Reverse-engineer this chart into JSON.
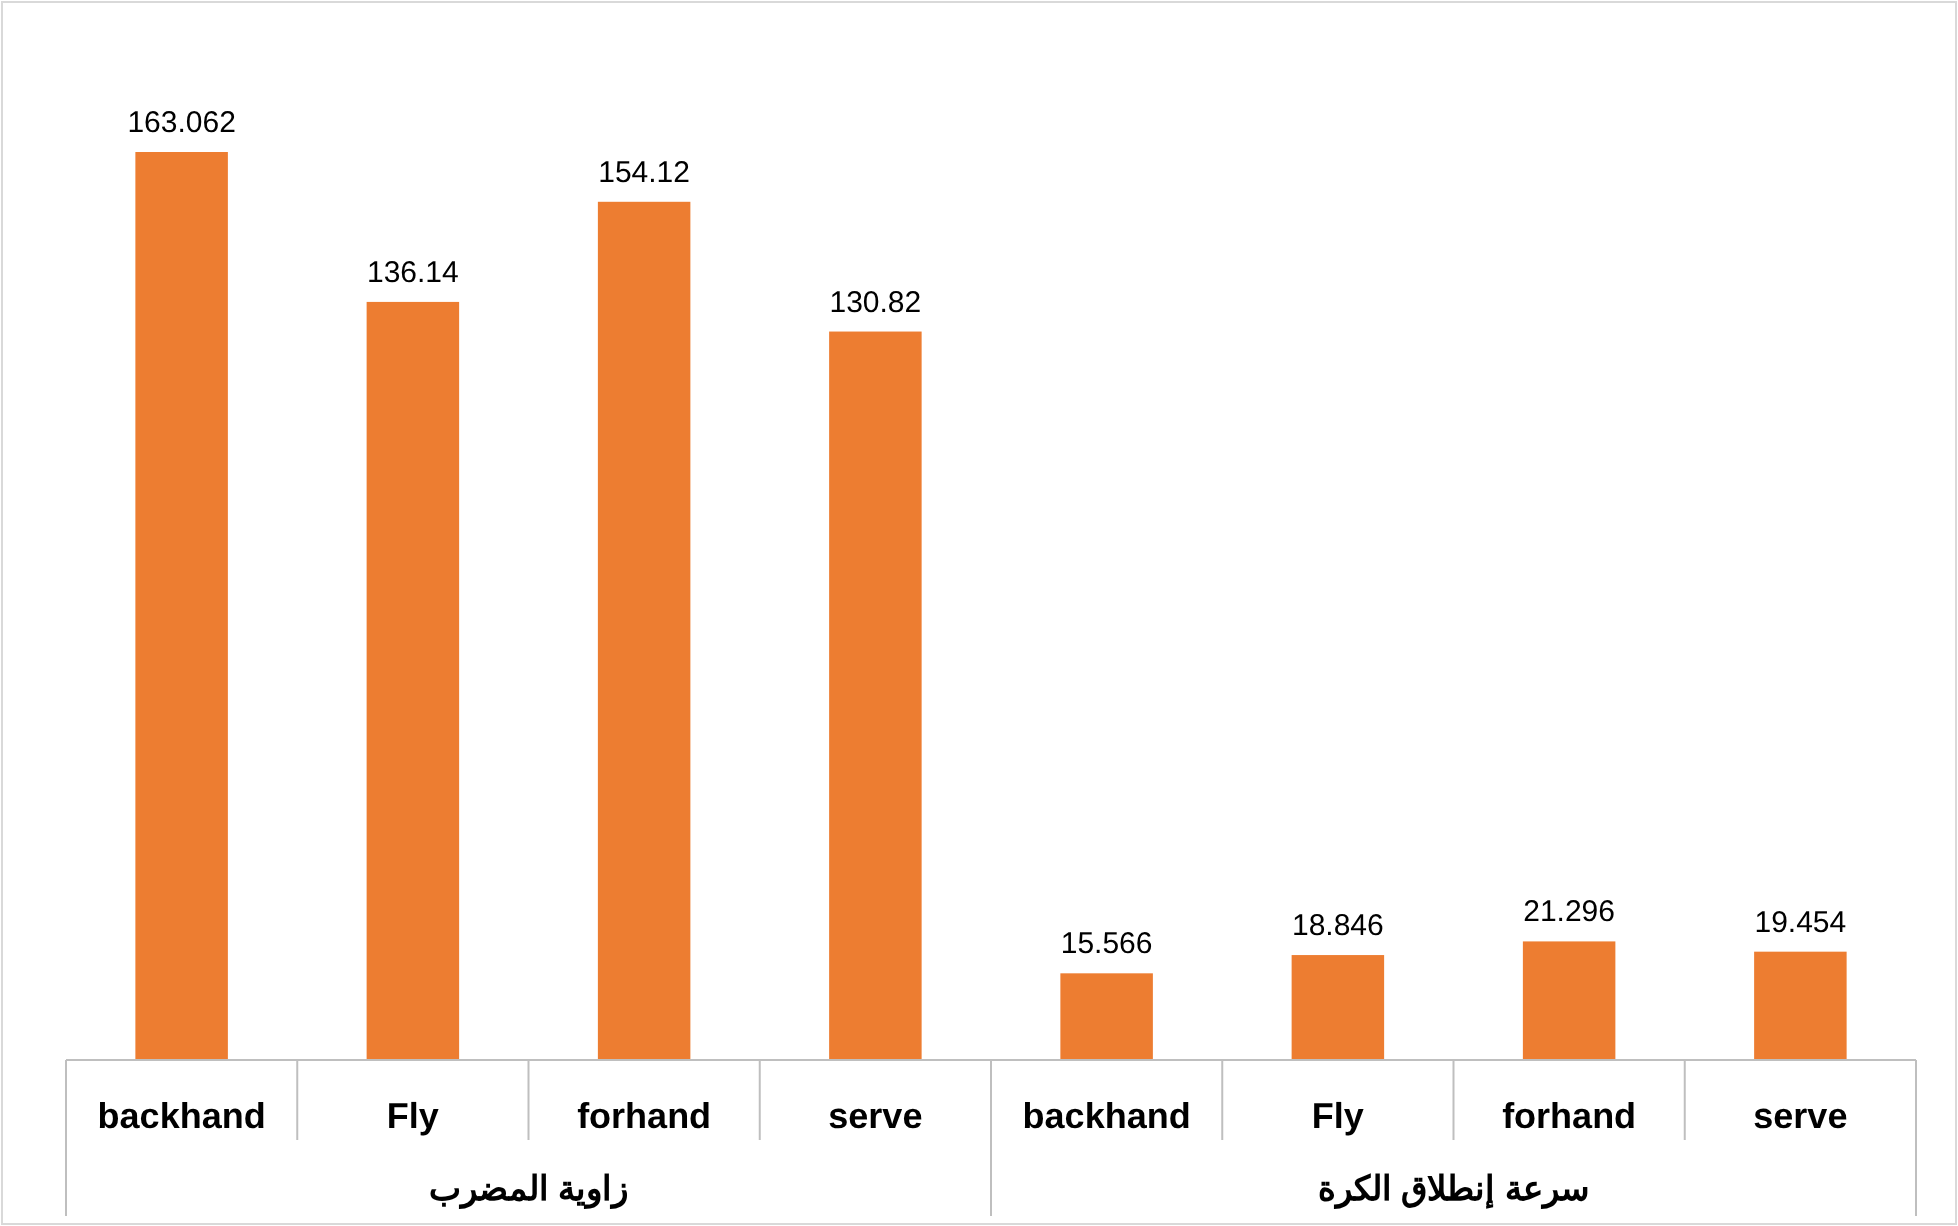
{
  "chart_data": {
    "type": "bar",
    "categories": [
      "backhand",
      "Fly",
      "forhand",
      "serve",
      "backhand",
      "Fly",
      "forhand",
      "serve"
    ],
    "values": [
      163.062,
      136.14,
      154.12,
      130.82,
      15.566,
      18.846,
      21.296,
      19.454
    ],
    "color": "#ed7d31",
    "data_labels": true,
    "annotations": [
      "زاوية المضرب",
      "سرعة إنطلاق الكرة"
    ]
  }
}
